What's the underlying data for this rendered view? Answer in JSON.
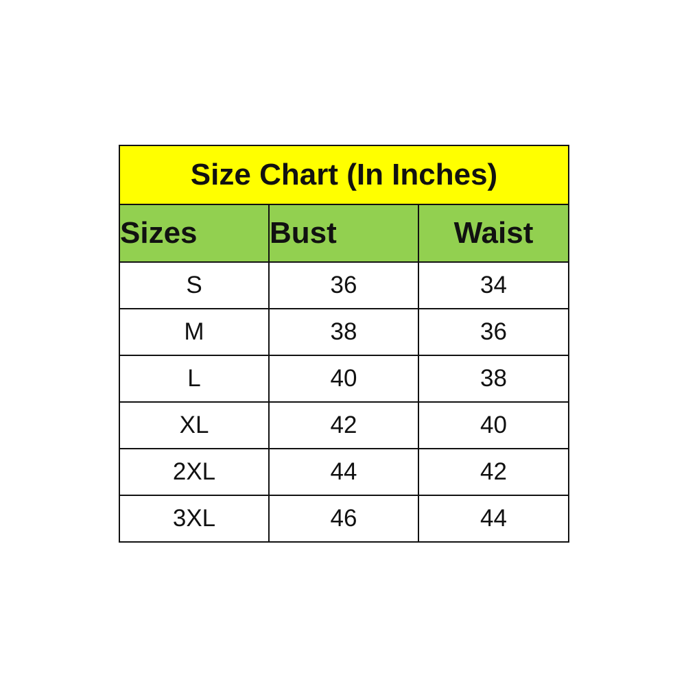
{
  "colors": {
    "title_bg": "#FFFF00",
    "header_bg": "#92D050",
    "cell_bg": "#FFFFFF",
    "border": "#111111"
  },
  "table": {
    "title": "Size Chart (In Inches)",
    "headers": [
      "Sizes",
      "Bust",
      "Waist"
    ],
    "rows": [
      [
        "S",
        "36",
        "34"
      ],
      [
        "M",
        "38",
        "36"
      ],
      [
        "L",
        "40",
        "38"
      ],
      [
        "XL",
        "42",
        "40"
      ],
      [
        "2XL",
        "44",
        "42"
      ],
      [
        "3XL",
        "46",
        "44"
      ]
    ]
  }
}
